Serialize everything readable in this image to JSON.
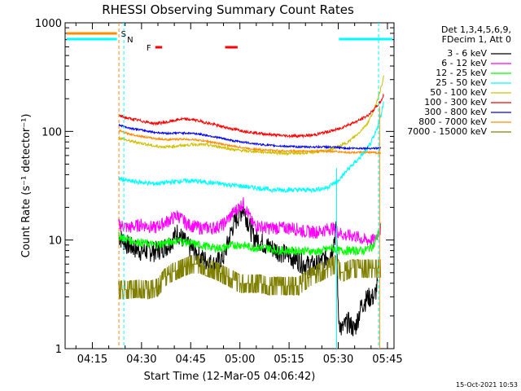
{
  "chart_data": {
    "type": "line",
    "title": "RHESSI Observing Summary Count Rates",
    "xlabel": "Start Time (12-Mar-05 04:06:42)",
    "ylabel": "Count Rate (s⁻¹ detector⁻¹)",
    "yscale": "log",
    "ylim": [
      1,
      1000
    ],
    "xlim_minutes": [
      6.7,
      107
    ],
    "x_ticks": [
      {
        "m": 15,
        "label": "04:15"
      },
      {
        "m": 30,
        "label": "04:30"
      },
      {
        "m": 45,
        "label": "04:45"
      },
      {
        "m": 60,
        "label": "05:00"
      },
      {
        "m": 75,
        "label": "05:15"
      },
      {
        "m": 90,
        "label": "05:30"
      },
      {
        "m": 105,
        "label": "05:45"
      }
    ],
    "y_ticks": [
      {
        "v": 1,
        "label": "1"
      },
      {
        "v": 10,
        "label": "10"
      },
      {
        "v": 100,
        "label": "100"
      },
      {
        "v": 1000,
        "label": "1000"
      }
    ],
    "legend_header": [
      "Det 1,3,4,5,6,9,",
      "FDecim 1, Att 0"
    ],
    "series": [
      {
        "name": "3 - 6 keV",
        "color": "#000000",
        "x": [
          23,
          26,
          30,
          34,
          38,
          41,
          44,
          48,
          52,
          55,
          58,
          61,
          64,
          68,
          72,
          76,
          80,
          84,
          88,
          89.5,
          90,
          91,
          93,
          95,
          97,
          99,
          101,
          102
        ],
        "y": [
          11,
          9,
          8,
          8,
          9,
          12,
          9,
          7,
          6,
          7,
          14,
          20,
          11,
          9,
          8,
          7,
          6,
          6,
          8,
          13,
          2,
          1.5,
          1.8,
          1.5,
          2.5,
          3,
          3,
          4
        ]
      },
      {
        "name": "6 - 12 keV",
        "color": "#ff00ff",
        "x": [
          23,
          26,
          30,
          34,
          38,
          41,
          44,
          48,
          52,
          55,
          58,
          61,
          64,
          68,
          72,
          76,
          80,
          84,
          88,
          90,
          92,
          95,
          98,
          101,
          103
        ],
        "y": [
          14,
          13,
          14,
          13,
          15,
          17,
          14,
          13,
          13,
          14,
          18,
          22,
          14,
          13,
          13,
          13,
          12,
          12,
          13,
          12,
          11,
          11,
          10,
          10,
          13
        ]
      },
      {
        "name": "12 - 25 keV",
        "color": "#00ff00",
        "x": [
          23,
          26,
          30,
          34,
          38,
          41,
          44,
          48,
          52,
          55,
          58,
          61,
          64,
          68,
          72,
          76,
          80,
          84,
          88,
          90,
          92,
          95,
          98,
          101,
          103
        ],
        "y": [
          11,
          10,
          9.5,
          9,
          9.5,
          10,
          9.5,
          9,
          8.5,
          8.5,
          9,
          9,
          8.5,
          8.5,
          8,
          8,
          8,
          7.8,
          8.5,
          8,
          8,
          8,
          8,
          9,
          14
        ]
      },
      {
        "name": "25 - 50 keV",
        "color": "#00ffff",
        "x": [
          23,
          26,
          30,
          34,
          38,
          42,
          46,
          50,
          54,
          58,
          62,
          66,
          70,
          74,
          78,
          82,
          86,
          90,
          93,
          96,
          99,
          101,
          103,
          104
        ],
        "y": [
          37,
          35,
          34,
          33,
          34,
          35,
          35,
          34,
          33,
          32,
          31,
          30,
          29,
          29,
          29,
          29,
          30,
          35,
          45,
          55,
          70,
          90,
          140,
          200
        ]
      },
      {
        "name": "50 - 100 keV",
        "color": "#d0c000",
        "x": [
          23,
          26,
          30,
          34,
          38,
          42,
          46,
          50,
          54,
          58,
          62,
          66,
          70,
          74,
          78,
          82,
          86,
          90,
          93,
          96,
          99,
          101,
          103,
          104
        ],
        "y": [
          88,
          82,
          78,
          73,
          72,
          74,
          76,
          75,
          72,
          68,
          66,
          65,
          64,
          63,
          63,
          64,
          66,
          72,
          80,
          95,
          120,
          160,
          250,
          330
        ]
      },
      {
        "name": "100 - 300 keV",
        "color": "#ff0000",
        "x": [
          23,
          26,
          30,
          34,
          38,
          42,
          46,
          50,
          54,
          58,
          62,
          66,
          70,
          74,
          78,
          82,
          86,
          90,
          93,
          96,
          99,
          101,
          103,
          104
        ],
        "y": [
          140,
          132,
          125,
          118,
          122,
          130,
          128,
          120,
          112,
          105,
          100,
          96,
          93,
          91,
          91,
          92,
          98,
          105,
          115,
          125,
          140,
          160,
          190,
          220
        ]
      },
      {
        "name": "300 - 800 keV",
        "color": "#0000ff",
        "x": [
          23,
          26,
          30,
          34,
          38,
          42,
          46,
          50,
          54,
          58,
          62,
          66,
          70,
          74,
          78,
          82,
          86,
          90,
          93,
          96,
          99,
          101,
          103
        ],
        "y": [
          115,
          108,
          103,
          98,
          96,
          97,
          96,
          92,
          87,
          82,
          79,
          76,
          74,
          73,
          72,
          72,
          72,
          71,
          70,
          70,
          70,
          70,
          70
        ]
      },
      {
        "name": "800 - 7000 keV",
        "color": "#ff8c00",
        "x": [
          23,
          26,
          30,
          34,
          38,
          42,
          46,
          50,
          54,
          58,
          62,
          66,
          70,
          74,
          78,
          82,
          86,
          90,
          93,
          96,
          99,
          101,
          103
        ],
        "y": [
          102,
          95,
          90,
          86,
          84,
          85,
          84,
          81,
          77,
          73,
          70,
          68,
          67,
          66,
          66,
          66,
          66,
          65,
          64,
          64,
          64,
          64,
          63
        ]
      },
      {
        "name": "7000 - 15000 keV",
        "color": "#808000",
        "x": [
          23,
          26,
          29,
          32,
          35,
          37,
          39,
          42,
          45,
          48,
          51,
          54,
          57,
          60,
          63,
          66,
          69,
          72,
          75,
          78,
          81,
          84,
          87,
          89,
          91,
          94,
          97,
          100,
          102,
          103
        ],
        "y": [
          3.5,
          3.5,
          3.6,
          3.5,
          3.7,
          4.5,
          5,
          5.5,
          6,
          6,
          5.5,
          5,
          4.5,
          4,
          4,
          4,
          3.8,
          3.8,
          3.8,
          3.8,
          4.5,
          5,
          5.5,
          6,
          5,
          5.5,
          5.5,
          5.5,
          5.5,
          5.5
        ]
      }
    ],
    "annotations": {
      "saa_label": "S",
      "night_label": "N",
      "flare_label": "F",
      "saa_bar_color": "#ff8c00",
      "night_bar_color": "#00ffff",
      "flare_color": "#ff0000"
    },
    "footer_date": "15-Oct-2021 10:53"
  }
}
